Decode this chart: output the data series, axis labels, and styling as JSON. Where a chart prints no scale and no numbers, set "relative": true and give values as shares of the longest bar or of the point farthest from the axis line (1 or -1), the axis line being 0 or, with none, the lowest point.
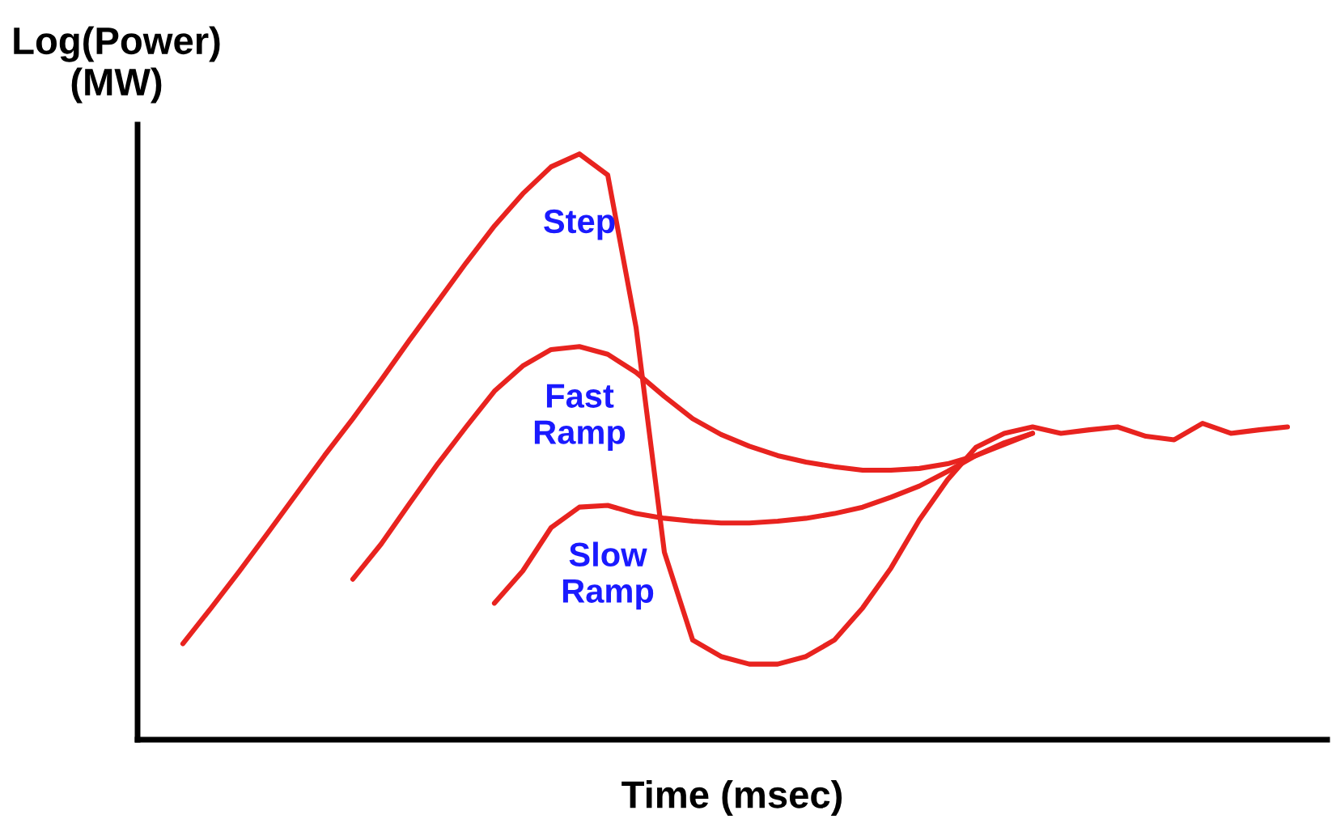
{
  "chart_data": {
    "type": "line",
    "relative": true,
    "xlabel": "Time (msec)",
    "ylabel": "Log(Power)\n(MW)",
    "legend": false,
    "marker": "none",
    "line_style": "solid",
    "tick_labels": false,
    "categories": [
      null,
      null,
      null,
      null,
      null,
      null,
      null,
      null,
      null,
      null,
      null,
      null,
      null,
      null,
      null,
      null,
      null,
      null,
      null,
      null,
      null,
      null,
      null,
      null,
      null,
      null,
      null,
      null,
      null,
      null,
      null,
      null,
      null,
      null,
      null,
      null,
      null,
      null,
      null,
      null
    ],
    "series": [
      {
        "name": "Step",
        "color": "#e8231f",
        "values": [
          0.164,
          0.225,
          0.288,
          0.353,
          0.419,
          0.485,
          0.548,
          0.614,
          0.682,
          0.748,
          0.814,
          0.877,
          0.932,
          0.978,
          1.0,
          0.964,
          0.704,
          0.32,
          0.17,
          0.142,
          0.129,
          0.129,
          0.142,
          0.17,
          0.225,
          0.293,
          0.375,
          0.444,
          0.499,
          0.523,
          0.534,
          0.523,
          0.529,
          0.534,
          0.518,
          0.512,
          0.54,
          0.523,
          0.529,
          0.534
        ]
      },
      {
        "name": "Fast\nRamp",
        "color": "#e8231f",
        "values": [
          null,
          null,
          null,
          null,
          null,
          null,
          0.274,
          0.334,
          0.403,
          0.471,
          0.534,
          0.595,
          0.638,
          0.666,
          0.671,
          0.658,
          0.627,
          0.586,
          0.548,
          0.521,
          0.501,
          0.485,
          0.474,
          0.466,
          0.46,
          0.46,
          0.463,
          0.471,
          0.485,
          0.504,
          0.523,
          null,
          null,
          null,
          null,
          null,
          null,
          null,
          null,
          null
        ]
      },
      {
        "name": "Slow\nRamp",
        "color": "#e8231f",
        "values": [
          null,
          null,
          null,
          null,
          null,
          null,
          null,
          null,
          null,
          null,
          null,
          0.233,
          0.288,
          0.362,
          0.397,
          0.4,
          0.386,
          0.378,
          0.373,
          0.37,
          0.37,
          0.373,
          0.378,
          0.386,
          0.397,
          0.414,
          0.433,
          0.458,
          0.485,
          0.507,
          0.523,
          null,
          null,
          null,
          null,
          null,
          null,
          null,
          null,
          null
        ]
      }
    ]
  }
}
